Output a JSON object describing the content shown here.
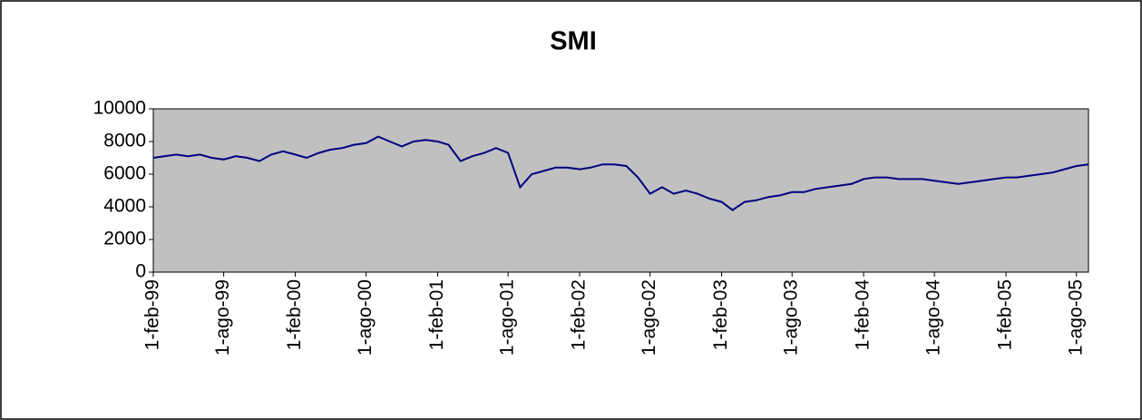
{
  "chart_data": {
    "type": "line",
    "title": "SMI",
    "x": [
      "1999-02-01",
      "1999-03-01",
      "1999-04-01",
      "1999-05-01",
      "1999-06-01",
      "1999-07-01",
      "1999-08-01",
      "1999-09-01",
      "1999-10-01",
      "1999-11-01",
      "1999-12-01",
      "2000-01-01",
      "2000-02-01",
      "2000-03-01",
      "2000-04-01",
      "2000-05-01",
      "2000-06-01",
      "2000-07-01",
      "2000-08-01",
      "2000-09-01",
      "2000-10-01",
      "2000-11-01",
      "2000-12-01",
      "2001-01-01",
      "2001-02-01",
      "2001-03-01",
      "2001-04-01",
      "2001-05-01",
      "2001-06-01",
      "2001-07-01",
      "2001-08-01",
      "2001-09-01",
      "2001-10-01",
      "2001-11-01",
      "2001-12-01",
      "2002-01-01",
      "2002-02-01",
      "2002-03-01",
      "2002-04-01",
      "2002-05-01",
      "2002-06-01",
      "2002-07-01",
      "2002-08-01",
      "2002-09-01",
      "2002-10-01",
      "2002-11-01",
      "2002-12-01",
      "2003-01-01",
      "2003-02-01",
      "2003-03-01",
      "2003-04-01",
      "2003-05-01",
      "2003-06-01",
      "2003-07-01",
      "2003-08-01",
      "2003-09-01",
      "2003-10-01",
      "2003-11-01",
      "2003-12-01",
      "2004-01-01",
      "2004-02-01",
      "2004-03-01",
      "2004-04-01",
      "2004-05-01",
      "2004-06-01",
      "2004-07-01",
      "2004-08-01",
      "2004-09-01",
      "2004-10-01",
      "2004-11-01",
      "2004-12-01",
      "2005-01-01",
      "2005-02-01",
      "2005-03-01",
      "2005-04-01",
      "2005-05-01",
      "2005-06-01",
      "2005-07-01",
      "2005-08-01",
      "2005-09-01"
    ],
    "series": [
      {
        "name": "SMI",
        "color": "#000080",
        "values": [
          7000,
          7100,
          7200,
          7100,
          7200,
          7000,
          6900,
          7100,
          7000,
          6800,
          7200,
          7400,
          7200,
          7000,
          7300,
          7500,
          7600,
          7800,
          7900,
          8300,
          8000,
          7700,
          8000,
          8100,
          8000,
          7800,
          6800,
          7100,
          7300,
          7600,
          7300,
          5200,
          6000,
          6200,
          6400,
          6400,
          6300,
          6400,
          6600,
          6600,
          6500,
          5800,
          4800,
          5200,
          4800,
          5000,
          4800,
          4500,
          4300,
          3800,
          4300,
          4400,
          4600,
          4700,
          4900,
          4900,
          5100,
          5200,
          5300,
          5400,
          5700,
          5800,
          5800,
          5700,
          5700,
          5700,
          5600,
          5500,
          5400,
          5500,
          5600,
          5700,
          5800,
          5800,
          5900,
          6000,
          6100,
          6300,
          6500,
          6600
        ]
      }
    ],
    "xlim": [
      "1999-02-01",
      "2005-09-01"
    ],
    "xticks": [
      {
        "value": "1999-02-01",
        "label": "1-feb-99"
      },
      {
        "value": "1999-08-01",
        "label": "1-ago-99"
      },
      {
        "value": "2000-02-01",
        "label": "1-feb-00"
      },
      {
        "value": "2000-08-01",
        "label": "1-ago-00"
      },
      {
        "value": "2001-02-01",
        "label": "1-feb-01"
      },
      {
        "value": "2001-08-01",
        "label": "1-ago-01"
      },
      {
        "value": "2002-02-01",
        "label": "1-feb-02"
      },
      {
        "value": "2002-08-01",
        "label": "1-ago-02"
      },
      {
        "value": "2003-02-01",
        "label": "1-feb-03"
      },
      {
        "value": "2003-08-01",
        "label": "1-ago-03"
      },
      {
        "value": "2004-02-01",
        "label": "1-feb-04"
      },
      {
        "value": "2004-08-01",
        "label": "1-ago-04"
      },
      {
        "value": "2005-02-01",
        "label": "1-feb-05"
      },
      {
        "value": "2005-08-01",
        "label": "1-ago-05"
      }
    ],
    "ylim": [
      0,
      10000
    ],
    "yticks": [
      0,
      2000,
      4000,
      6000,
      8000,
      10000
    ],
    "plot_background": "#c0c0c0",
    "grid": false
  }
}
